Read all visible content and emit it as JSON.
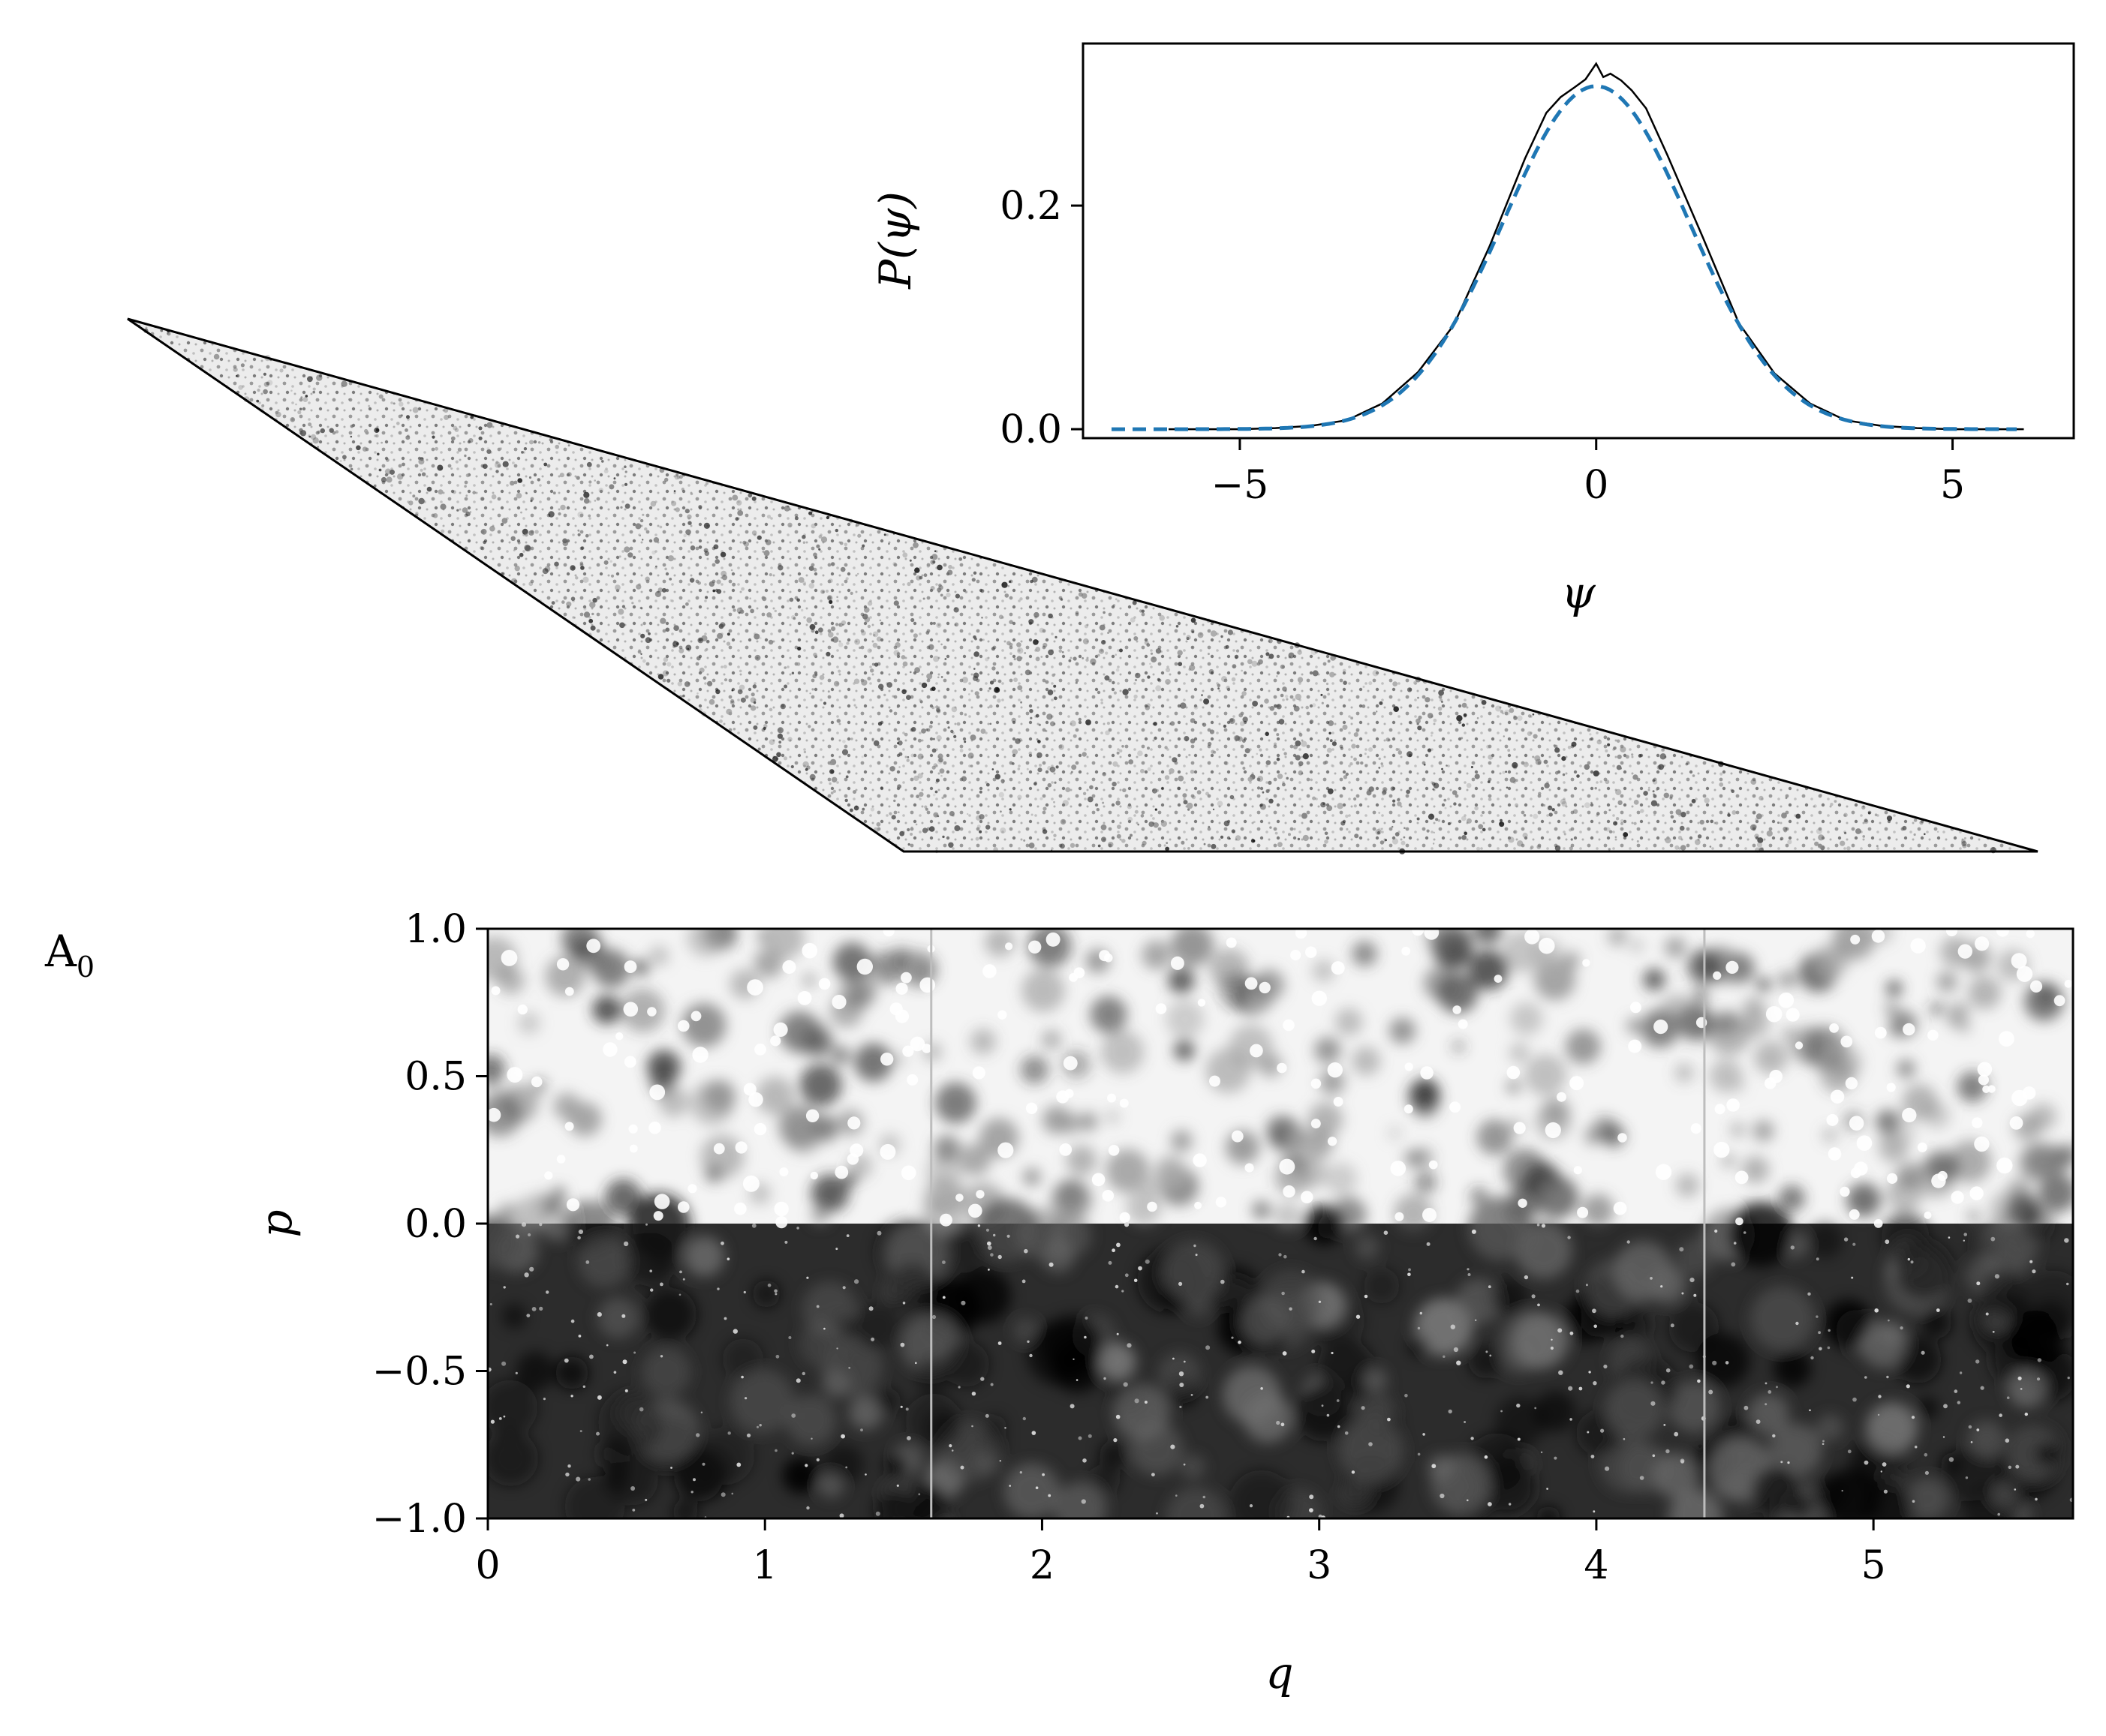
{
  "panel_label": "A",
  "panel_label_sub": "0",
  "chart_data": [
    {
      "type": "line",
      "xlabel": "ψ",
      "ylabel": "P(ψ)",
      "xlim": [
        -7.2,
        6.7
      ],
      "ylim": [
        -0.008,
        0.345
      ],
      "xticks": [
        -5,
        0,
        5
      ],
      "xtick_labels": [
        "−5",
        "0",
        "5"
      ],
      "yticks": [
        0.0,
        0.2
      ],
      "ytick_labels": [
        "0.0",
        "0.2"
      ],
      "grid": false,
      "series": [
        {
          "style": "solid",
          "color": "#000000",
          "x": [
            -6.0,
            -5.0,
            -4.5,
            -4.0,
            -3.5,
            -3.0,
            -2.5,
            -2.0,
            -1.5,
            -1.0,
            -0.7,
            -0.5,
            -0.3,
            -0.15,
            0.0,
            0.1,
            0.2,
            0.35,
            0.5,
            0.7,
            1.0,
            1.5,
            2.0,
            2.5,
            3.0,
            3.5,
            4.0,
            4.5,
            5.0,
            6.0
          ],
          "y": [
            0.0,
            0.0,
            0.001,
            0.003,
            0.008,
            0.023,
            0.051,
            0.093,
            0.163,
            0.242,
            0.283,
            0.297,
            0.306,
            0.313,
            0.327,
            0.315,
            0.318,
            0.312,
            0.303,
            0.287,
            0.245,
            0.171,
            0.095,
            0.05,
            0.023,
            0.008,
            0.003,
            0.001,
            0.0,
            0.0
          ]
        },
        {
          "style": "dashed",
          "color": "#1f77b4",
          "model": "gaussian",
          "mean": 0.0,
          "sigma": 1.3,
          "x_range": [
            -6.8,
            5.9
          ]
        }
      ]
    },
    {
      "type": "heatmap",
      "xlabel": "q",
      "ylabel": "p",
      "xlim": [
        0,
        5.72
      ],
      "ylim": [
        -1.0,
        1.0
      ],
      "xticks": [
        0,
        1,
        2,
        3,
        4,
        5
      ],
      "xtick_labels": [
        "0",
        "1",
        "2",
        "3",
        "4",
        "5"
      ],
      "yticks": [
        1.0,
        0.5,
        0.0,
        -0.5,
        -1.0
      ],
      "ytick_labels": [
        "1.0",
        "0.5",
        "0.0",
        "−0.5",
        "−1.0"
      ],
      "separator_q": [
        1.6,
        4.39
      ],
      "colormap": "grayscale",
      "upper_half_background": "#f4f4f4",
      "lower_half_background": "#2c2c2c",
      "grid": false
    }
  ],
  "triangle_figure": {
    "fill": "#e4e4e4",
    "stroke": "#000000"
  }
}
